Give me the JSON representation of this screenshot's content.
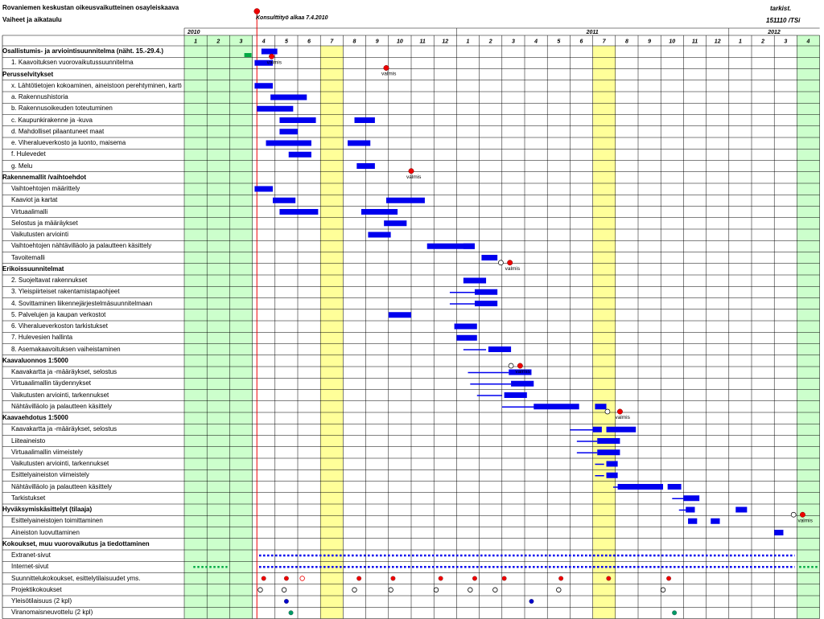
{
  "title": "Rovaniemen keskustan oikeusvaikutteinen osayleiskaava",
  "subtitle": "Vaiheet ja aikataulu",
  "tarkist": "tarkist.",
  "code": "151110 /TSi",
  "milestone": "Konsulttityö alkaa 7.4.2010",
  "years": [
    "2010",
    "2011",
    "2012"
  ],
  "months": [
    "1",
    "2",
    "3",
    "4",
    "5",
    "6",
    "7",
    "8",
    "9",
    "10",
    "11",
    "12",
    "1",
    "2",
    "3",
    "4",
    "5",
    "6",
    "7",
    "8",
    "9",
    "10",
    "11",
    "12",
    "1",
    "2",
    "3",
    "4"
  ],
  "valmis": "valmis",
  "rows": [
    {
      "t": "Osallistumis- ja arviointisuunnitelma (näht. 15.-29.4.)",
      "b": true
    },
    {
      "t": "1. Kaavoituksen vuorovaikutussuunnitelma",
      "b": false
    },
    {
      "t": "Perusselvitykset",
      "b": true
    },
    {
      "t": "x. Lähtötietojen kokoaminen, aineistoon perehtyminen, karttojen orientointi",
      "b": false
    },
    {
      "t": "a. Rakennushistoria",
      "b": false
    },
    {
      "t": "b. Rakennusoikeuden toteutuminen",
      "b": false
    },
    {
      "t": "c. Kaupunkirakenne ja -kuva",
      "b": false
    },
    {
      "t": "d. Mahdolliset pilaantuneet maat",
      "b": false
    },
    {
      "t": "e. Viheralueverkosto ja luonto, maisema",
      "b": false
    },
    {
      "t": "f. Hulevedet",
      "b": false
    },
    {
      "t": "g. Melu",
      "b": false
    },
    {
      "t": "Rakennemallit /vaihtoehdot",
      "b": true
    },
    {
      "t": "Vaihtoehtojen määrittely",
      "b": false
    },
    {
      "t": "Kaaviot ja kartat",
      "b": false
    },
    {
      "t": "Virtuaalimalli",
      "b": false
    },
    {
      "t": "Selostus ja määräykset",
      "b": false
    },
    {
      "t": "Vaikutusten arviointi",
      "b": false
    },
    {
      "t": "Vaihtoehtojen nähtävilläolo ja palautteen käsittely",
      "b": false
    },
    {
      "t": "Tavoitemalli",
      "b": false
    },
    {
      "t": "Erikoissuunnitelmat",
      "b": true
    },
    {
      "t": "2. Suojeltavat rakennukset",
      "b": false
    },
    {
      "t": "3. Yleispiirteiset rakentamistapaohjeet",
      "b": false
    },
    {
      "t": "4. Sovittaminen liikennejärjestelmäsuunnitelmaan",
      "b": false
    },
    {
      "t": "5. Palvelujen ja kaupan verkostot",
      "b": false
    },
    {
      "t": "6. Viheralueverkoston tarkistukset",
      "b": false
    },
    {
      "t": "7. Hulevesien hallinta",
      "b": false
    },
    {
      "t": "8. Asemakaavoituksen vaiheistaminen",
      "b": false
    },
    {
      "t": "Kaavaluonnos 1:5000",
      "b": true
    },
    {
      "t": "Kaavakartta ja -määräykset, selostus",
      "b": false
    },
    {
      "t": "Virtuaalimallin täydennykset",
      "b": false
    },
    {
      "t": "Vaikutusten arviointi, tarkennukset",
      "b": false
    },
    {
      "t": "Nähtävilläolo ja palautteen käsittely",
      "b": false
    },
    {
      "t": "Kaavaehdotus 1:5000",
      "b": true
    },
    {
      "t": "Kaavakartta ja -määräykset, selostus",
      "b": false
    },
    {
      "t": "Liiteaineisto",
      "b": false
    },
    {
      "t": "Virtuaalimallin viimeistely",
      "b": false
    },
    {
      "t": "Vaikutusten arviointi, tarkennukset",
      "b": false
    },
    {
      "t": "Esittelyaineiston viimeistely",
      "b": false
    },
    {
      "t": "Nähtävilläolo ja palautteen käsittely",
      "b": false
    },
    {
      "t": "Tarkistukset",
      "b": false
    },
    {
      "t": "Hyväksymiskäsittelyt (tilaaja)",
      "b": true
    },
    {
      "t": "Esittelyaineistojen toimittaminen",
      "b": false
    },
    {
      "t": "Aineiston luovuttaminen",
      "b": false
    },
    {
      "t": "Kokoukset, muu vuorovaikutus ja tiedottaminen",
      "b": true
    },
    {
      "t": "Extranet-sivut",
      "b": false
    },
    {
      "t": "Internet-sivut",
      "b": false
    },
    {
      "t": "Suunnittelukokoukset, esittelytilaisuudet yms.",
      "b": false
    },
    {
      "t": "Projektikokoukset",
      "b": false
    },
    {
      "t": "Yleisötilaisuus (2 kpl)",
      "b": false
    },
    {
      "t": "Viranomaisneuvottelu (2 kpl)",
      "b": false
    }
  ],
  "colors": {
    "bar": "#0000ee",
    "green": "#ccffcc",
    "yellow": "#ffff99",
    "milestone": "#ee0000",
    "grid": "#000000"
  },
  "bars": [
    {
      "r": 0,
      "s": 4.4,
      "e": 5.1
    },
    {
      "r": 1,
      "s": 4.1,
      "e": 4.9
    },
    {
      "r": 3,
      "s": 4.1,
      "e": 4.9
    },
    {
      "r": 4,
      "s": 4.8,
      "e": 6.4
    },
    {
      "r": 5,
      "s": 4.2,
      "e": 5.8
    },
    {
      "r": 6,
      "s": 5.2,
      "e": 6.8
    },
    {
      "r": 6,
      "s": 8.5,
      "e": 9.4
    },
    {
      "r": 7,
      "s": 5.2,
      "e": 6.0
    },
    {
      "r": 8,
      "s": 4.6,
      "e": 6.6
    },
    {
      "r": 8,
      "s": 8.2,
      "e": 9.2
    },
    {
      "r": 9,
      "s": 5.6,
      "e": 6.6
    },
    {
      "r": 10,
      "s": 8.6,
      "e": 9.4
    },
    {
      "r": 12,
      "s": 4.1,
      "e": 4.9
    },
    {
      "r": 13,
      "s": 4.9,
      "e": 5.9
    },
    {
      "r": 13,
      "s": 9.9,
      "e": 11.6
    },
    {
      "r": 14,
      "s": 5.2,
      "e": 6.9
    },
    {
      "r": 14,
      "s": 8.8,
      "e": 10.4
    },
    {
      "r": 15,
      "s": 9.8,
      "e": 10.8
    },
    {
      "r": 16,
      "s": 9.1,
      "e": 10.1
    },
    {
      "r": 17,
      "s": 11.7,
      "e": 13.8
    },
    {
      "r": 17,
      "s": 13.3,
      "e": 13.8
    },
    {
      "r": 18,
      "s": 14.1,
      "e": 14.8
    },
    {
      "r": 20,
      "s": 13.3,
      "e": 14.3
    },
    {
      "r": 21,
      "s": 13.8,
      "e": 14.8
    },
    {
      "r": 22,
      "s": 13.8,
      "e": 14.8
    },
    {
      "r": 23,
      "s": 10.0,
      "e": 11.0
    },
    {
      "r": 24,
      "s": 12.9,
      "e": 13.9
    },
    {
      "r": 25,
      "s": 13.0,
      "e": 13.9
    },
    {
      "r": 26,
      "s": 14.4,
      "e": 15.4
    },
    {
      "r": 28,
      "s": 15.3,
      "e": 16.3
    },
    {
      "r": 29,
      "s": 15.4,
      "e": 16.4
    },
    {
      "r": 30,
      "s": 15.1,
      "e": 16.1
    },
    {
      "r": 31,
      "s": 16.4,
      "e": 18.4
    },
    {
      "r": 31,
      "s": 19.1,
      "e": 19.6
    },
    {
      "r": 33,
      "s": 19.0,
      "e": 19.4
    },
    {
      "r": 33,
      "s": 19.6,
      "e": 20.9
    },
    {
      "r": 34,
      "s": 19.2,
      "e": 20.2
    },
    {
      "r": 35,
      "s": 19.2,
      "e": 20.2
    },
    {
      "r": 36,
      "s": 19.6,
      "e": 20.1
    },
    {
      "r": 37,
      "s": 19.6,
      "e": 20.1
    },
    {
      "r": 38,
      "s": 20.1,
      "e": 22.1
    },
    {
      "r": 38,
      "s": 22.3,
      "e": 22.9
    },
    {
      "r": 39,
      "s": 23.0,
      "e": 23.7
    },
    {
      "r": 40,
      "s": 23.1,
      "e": 23.5
    },
    {
      "r": 40,
      "s": 25.3,
      "e": 25.8
    },
    {
      "r": 41,
      "s": 23.2,
      "e": 23.6
    },
    {
      "r": 41,
      "s": 24.2,
      "e": 24.6
    },
    {
      "r": 42,
      "s": 27.0,
      "e": 27.4
    }
  ],
  "lines": [
    {
      "r": 21,
      "s": 12.7,
      "e": 13.8
    },
    {
      "r": 22,
      "s": 12.7,
      "e": 13.8
    },
    {
      "r": 26,
      "s": 13.3,
      "e": 14.3
    },
    {
      "r": 28,
      "s": 13.5,
      "e": 15.3
    },
    {
      "r": 29,
      "s": 13.6,
      "e": 15.4
    },
    {
      "r": 30,
      "s": 13.9,
      "e": 15.0
    },
    {
      "r": 31,
      "s": 15.0,
      "e": 17.4
    },
    {
      "r": 33,
      "s": 18.0,
      "e": 19.3
    },
    {
      "r": 34,
      "s": 18.3,
      "e": 19.2
    },
    {
      "r": 35,
      "s": 18.3,
      "e": 19.2
    },
    {
      "r": 36,
      "s": 19.1,
      "e": 19.5
    },
    {
      "r": 37,
      "s": 19.1,
      "e": 19.5
    },
    {
      "r": 38,
      "s": 19.9,
      "e": 22.1
    },
    {
      "r": 39,
      "s": 22.5,
      "e": 23.5
    },
    {
      "r": 40,
      "s": 22.8,
      "e": 23.4
    }
  ],
  "dotted": [
    {
      "r": 44,
      "s": 4.3,
      "e": 27.9
    },
    {
      "r": 45,
      "s": 1.4,
      "e": 2.9
    },
    {
      "r": 45,
      "s": 4.3,
      "e": 27.9
    },
    {
      "r": 45,
      "s": 28.1,
      "e": 28.9
    }
  ],
  "milestones": [
    {
      "r": 0,
      "x": 4.85,
      "label": true
    },
    {
      "r": 1,
      "x": 9.9,
      "label": true
    },
    {
      "r": 10,
      "x": 11.0,
      "label": true
    },
    {
      "r": 18,
      "x": 15.35,
      "label": true
    },
    {
      "r": 27,
      "x": 15.8,
      "label": true
    },
    {
      "r": 31,
      "x": 20.2,
      "label": true
    },
    {
      "r": 40,
      "x": 28.25,
      "label": true
    }
  ],
  "open_circles": [
    {
      "r": 18,
      "x": 14.95
    },
    {
      "r": 27,
      "x": 15.4
    },
    {
      "r": 31,
      "x": 19.65
    },
    {
      "r": 40,
      "x": 27.85
    }
  ],
  "meetings": [
    {
      "r": 46,
      "x": 4.5,
      "c": "#ee0000",
      "o": false
    },
    {
      "r": 46,
      "x": 5.5,
      "c": "#ee0000",
      "o": false
    },
    {
      "r": 46,
      "x": 6.2,
      "c": "#ee0000",
      "o": true
    },
    {
      "r": 46,
      "x": 8.7,
      "c": "#ee0000",
      "o": false
    },
    {
      "r": 46,
      "x": 10.2,
      "c": "#ee0000",
      "o": false
    },
    {
      "r": 46,
      "x": 12.3,
      "c": "#ee0000",
      "o": false
    },
    {
      "r": 46,
      "x": 13.8,
      "c": "#ee0000",
      "o": false
    },
    {
      "r": 46,
      "x": 15.1,
      "c": "#ee0000",
      "o": false
    },
    {
      "r": 46,
      "x": 17.6,
      "c": "#ee0000",
      "o": false
    },
    {
      "r": 46,
      "x": 19.7,
      "c": "#ee0000",
      "o": false
    },
    {
      "r": 46,
      "x": 22.35,
      "c": "#ee0000",
      "o": false
    },
    {
      "r": 47,
      "x": 4.35,
      "c": "#000",
      "o": true
    },
    {
      "r": 47,
      "x": 5.4,
      "c": "#000",
      "o": true
    },
    {
      "r": 47,
      "x": 8.5,
      "c": "#000",
      "o": true
    },
    {
      "r": 47,
      "x": 10.1,
      "c": "#000",
      "o": true
    },
    {
      "r": 47,
      "x": 12.1,
      "c": "#000",
      "o": true
    },
    {
      "r": 47,
      "x": 13.6,
      "c": "#000",
      "o": true
    },
    {
      "r": 47,
      "x": 14.7,
      "c": "#000",
      "o": true
    },
    {
      "r": 47,
      "x": 17.5,
      "c": "#000",
      "o": true
    },
    {
      "r": 47,
      "x": 22.1,
      "c": "#000",
      "o": true
    },
    {
      "r": 48,
      "x": 5.5,
      "c": "#0000cc",
      "o": false
    },
    {
      "r": 48,
      "x": 16.3,
      "c": "#0000cc",
      "o": false
    },
    {
      "r": 49,
      "x": 5.7,
      "c": "#009966",
      "o": false
    },
    {
      "r": 49,
      "x": 22.6,
      "c": "#009966",
      "o": false
    }
  ]
}
